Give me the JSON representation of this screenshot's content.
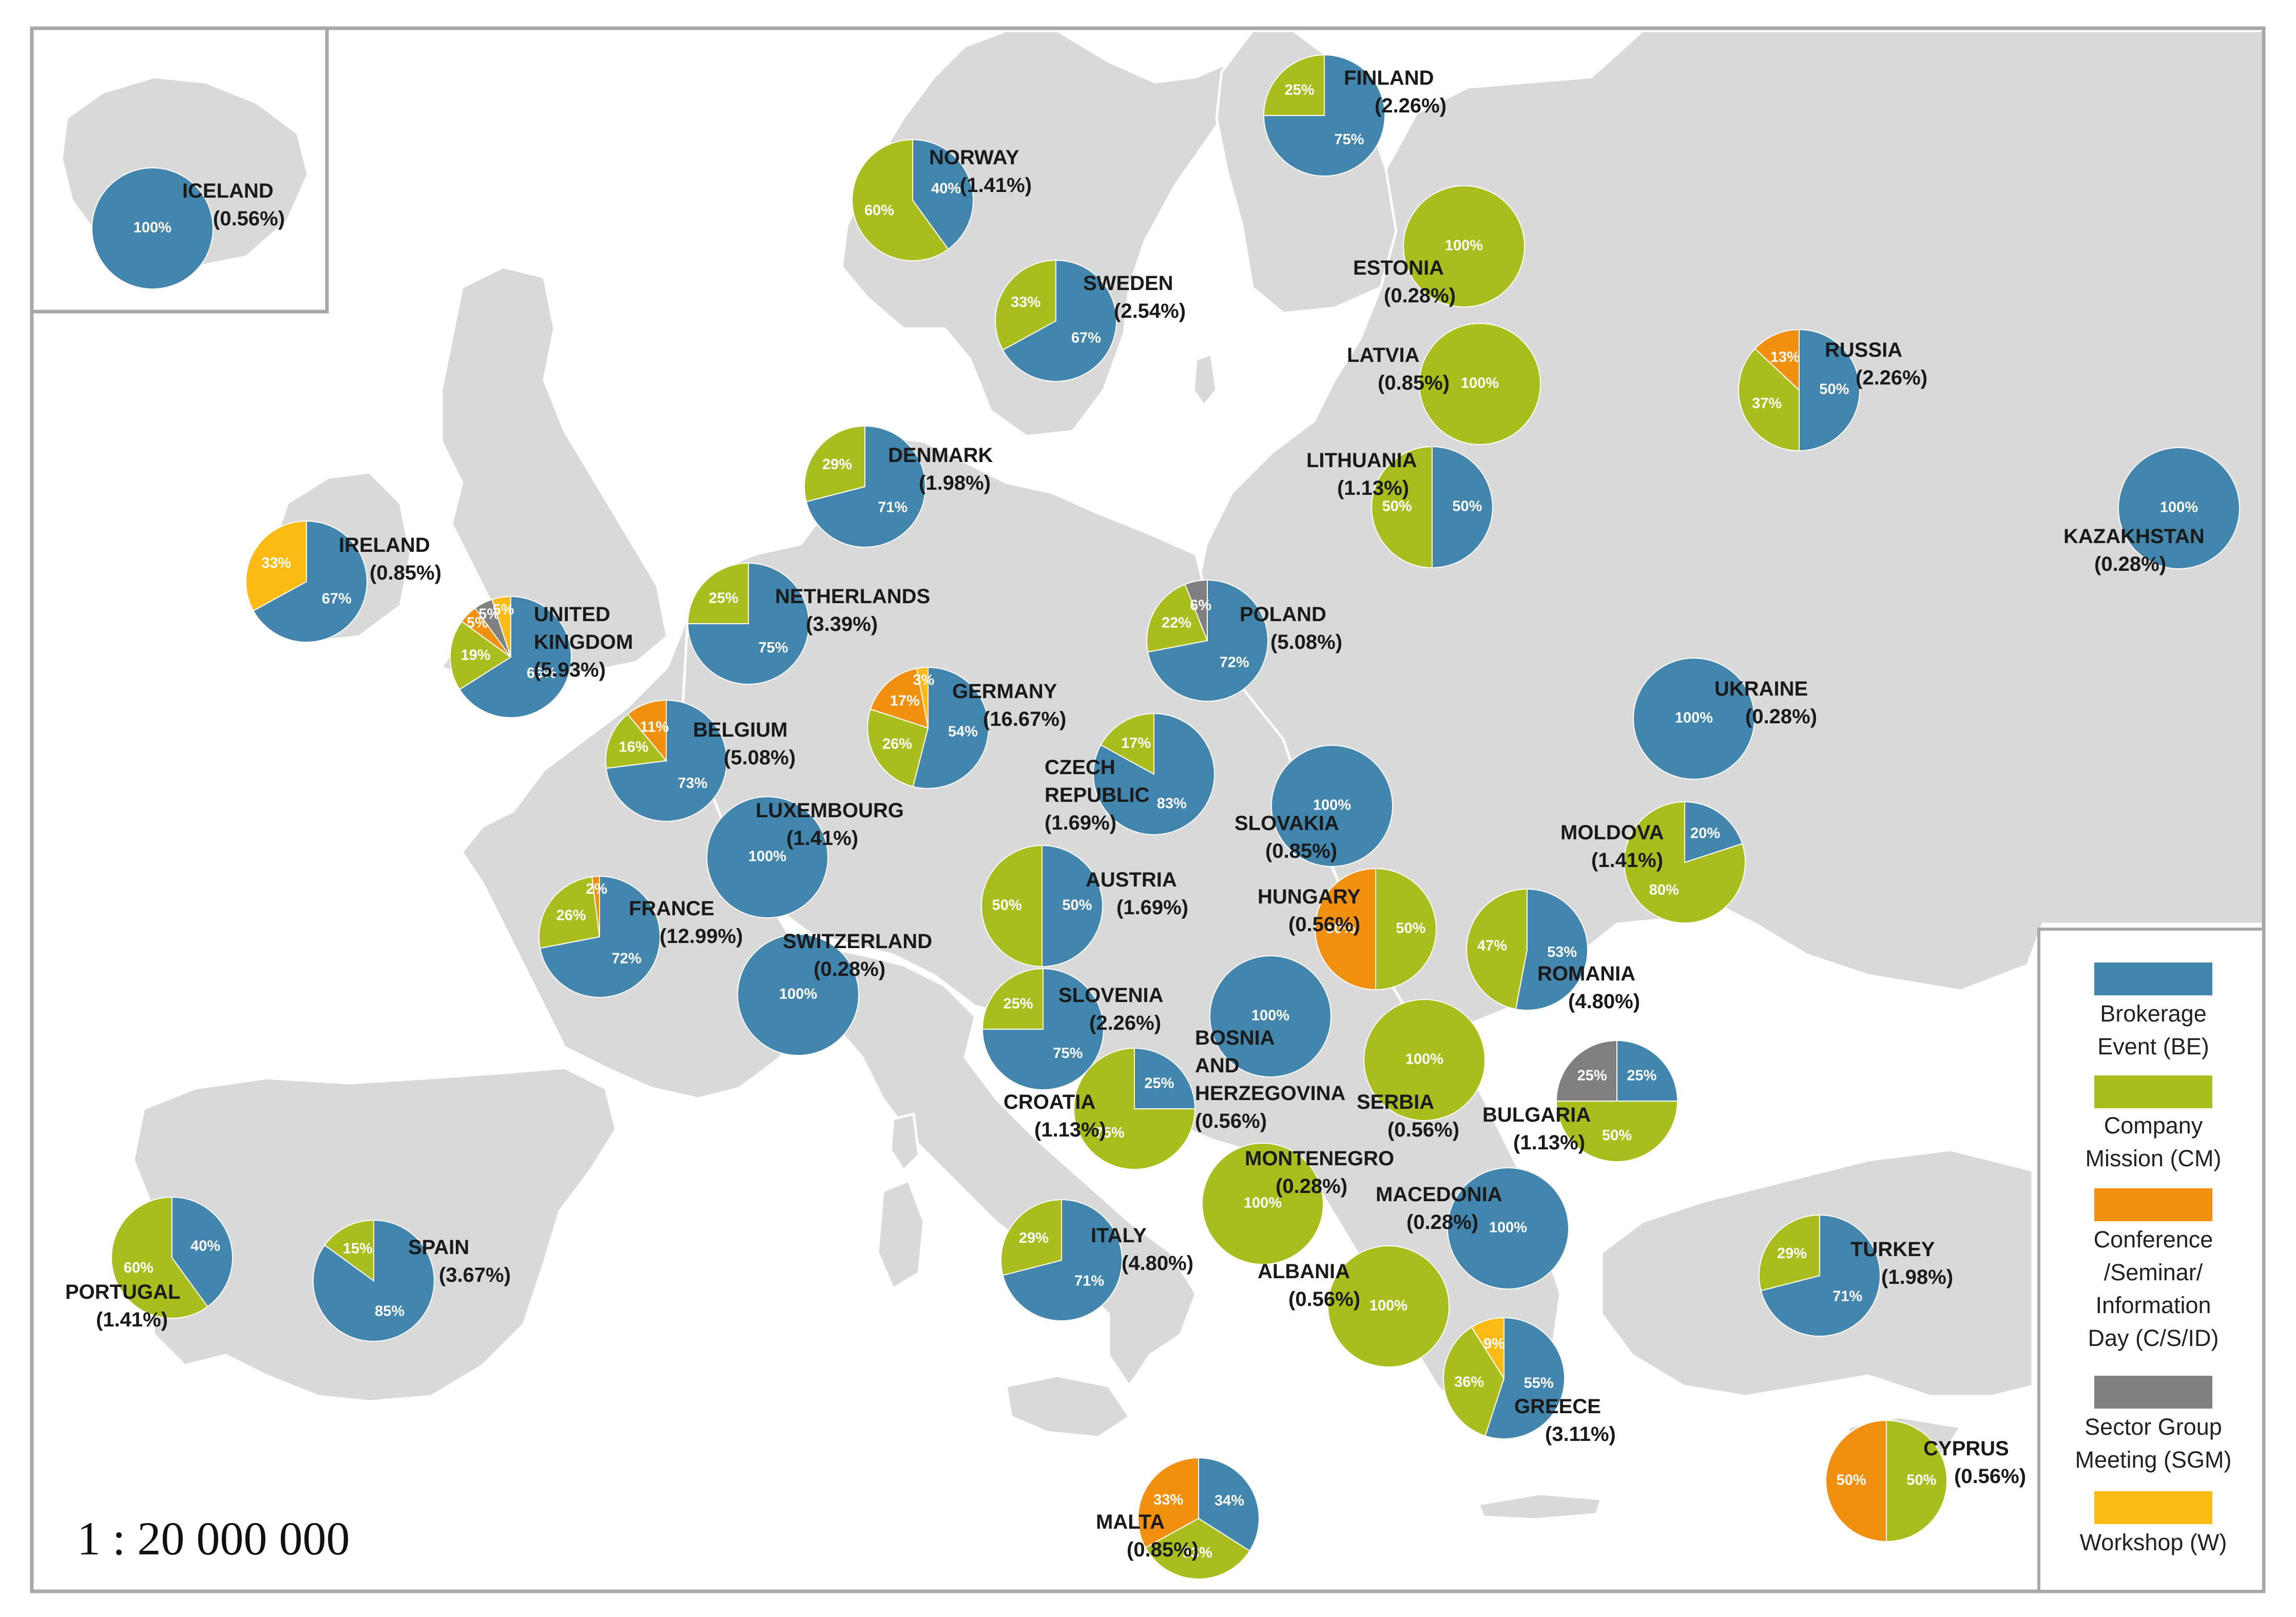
{
  "scale": "1 : 20 000 000",
  "colors": {
    "BE": "#4286ad",
    "CM": "#a9be1c",
    "CSID": "#f1900e",
    "SGM": "#808080",
    "W": "#fbbb12"
  },
  "legend": [
    {
      "key": "BE",
      "lines": [
        "Brokerage",
        "Event (BE)"
      ]
    },
    {
      "key": "CM",
      "lines": [
        "Company",
        "Mission (CM)"
      ]
    },
    {
      "key": "CSID",
      "lines": [
        "Conference",
        "/Seminar/",
        "Information",
        "Day (C/S/ID)"
      ]
    },
    {
      "key": "SGM",
      "lines": [
        "Sector Group",
        "Meeting (SGM)"
      ]
    },
    {
      "key": "W",
      "lines": [
        "Workshop (W)"
      ]
    }
  ],
  "countries": [
    {
      "id": "iceland",
      "name": [
        "ICELAND"
      ],
      "share": "(0.56%)",
      "slices": [
        {
          "k": "BE",
          "v": 100,
          "label": "100%"
        }
      ]
    },
    {
      "id": "finland",
      "name": [
        "FINLAND"
      ],
      "share": "(2.26%)",
      "slices": [
        {
          "k": "BE",
          "v": 75,
          "label": "75%"
        },
        {
          "k": "CM",
          "v": 25,
          "label": "25%"
        }
      ]
    },
    {
      "id": "norway",
      "name": [
        "NORWAY"
      ],
      "share": "(1.41%)",
      "slices": [
        {
          "k": "BE",
          "v": 40,
          "label": "40%"
        },
        {
          "k": "CM",
          "v": 60,
          "label": "60%"
        }
      ]
    },
    {
      "id": "sweden",
      "name": [
        "SWEDEN"
      ],
      "share": "(2.54%)",
      "slices": [
        {
          "k": "BE",
          "v": 67,
          "label": "67%"
        },
        {
          "k": "CM",
          "v": 33,
          "label": "33%"
        }
      ]
    },
    {
      "id": "estonia",
      "name": [
        "ESTONIA"
      ],
      "share": "(0.28%)",
      "slices": [
        {
          "k": "CM",
          "v": 100,
          "label": "100%"
        }
      ]
    },
    {
      "id": "latvia",
      "name": [
        "LATVIA"
      ],
      "share": "(0.85%)",
      "slices": [
        {
          "k": "CM",
          "v": 100,
          "label": "100%"
        }
      ]
    },
    {
      "id": "russia",
      "name": [
        "RUSSIA"
      ],
      "share": "(2.26%)",
      "slices": [
        {
          "k": "BE",
          "v": 50,
          "label": "50%"
        },
        {
          "k": "CM",
          "v": 37,
          "label": "37%"
        },
        {
          "k": "CSID",
          "v": 13,
          "label": "13%"
        }
      ]
    },
    {
      "id": "denmark",
      "name": [
        "DENMARK"
      ],
      "share": "(1.98%)",
      "slices": [
        {
          "k": "BE",
          "v": 71,
          "label": "71%"
        },
        {
          "k": "CM",
          "v": 29,
          "label": "29%"
        }
      ]
    },
    {
      "id": "lithuania",
      "name": [
        "LITHUANIA"
      ],
      "share": "(1.13%)",
      "slices": [
        {
          "k": "BE",
          "v": 50,
          "label": "50%"
        },
        {
          "k": "CM",
          "v": 50,
          "label": "50%"
        }
      ]
    },
    {
      "id": "kazakhstan",
      "name": [
        "KAZAKHSTAN"
      ],
      "share": "(0.28%)",
      "slices": [
        {
          "k": "BE",
          "v": 100,
          "label": "100%"
        }
      ]
    },
    {
      "id": "ireland",
      "name": [
        "IRELAND"
      ],
      "share": "(0.85%)",
      "slices": [
        {
          "k": "BE",
          "v": 67,
          "label": "67%"
        },
        {
          "k": "W",
          "v": 33,
          "label": "33%"
        }
      ]
    },
    {
      "id": "uk",
      "name": [
        "UNITED",
        "KINGDOM"
      ],
      "share": "(5.93%)",
      "slices": [
        {
          "k": "BE",
          "v": 66,
          "label": "66%"
        },
        {
          "k": "CM",
          "v": 19,
          "label": "19%"
        },
        {
          "k": "CSID",
          "v": 5,
          "label": "5%"
        },
        {
          "k": "SGM",
          "v": 5,
          "label": "5%"
        },
        {
          "k": "W",
          "v": 5,
          "label": "5%"
        }
      ]
    },
    {
      "id": "netherlands",
      "name": [
        "NETHERLANDS"
      ],
      "share": "(3.39%)",
      "slices": [
        {
          "k": "BE",
          "v": 75,
          "label": "75%"
        },
        {
          "k": "CM",
          "v": 25,
          "label": "25%"
        }
      ]
    },
    {
      "id": "poland",
      "name": [
        "POLAND"
      ],
      "share": "(5.08%)",
      "slices": [
        {
          "k": "BE",
          "v": 72,
          "label": "72%"
        },
        {
          "k": "CM",
          "v": 22,
          "label": "22%"
        },
        {
          "k": "SGM",
          "v": 6,
          "label": "6%"
        }
      ]
    },
    {
      "id": "germany",
      "name": [
        "GERMANY"
      ],
      "share": "(16.67%)",
      "slices": [
        {
          "k": "BE",
          "v": 54,
          "label": "54%"
        },
        {
          "k": "CM",
          "v": 26,
          "label": "26%"
        },
        {
          "k": "CSID",
          "v": 17,
          "label": "17%"
        },
        {
          "k": "W",
          "v": 3,
          "label": "3%"
        }
      ]
    },
    {
      "id": "belgium",
      "name": [
        "BELGIUM"
      ],
      "share": "(5.08%)",
      "slices": [
        {
          "k": "BE",
          "v": 73,
          "label": "73%"
        },
        {
          "k": "CM",
          "v": 16,
          "label": "16%"
        },
        {
          "k": "CSID",
          "v": 11,
          "label": "11%"
        }
      ]
    },
    {
      "id": "ukraine",
      "name": [
        "UKRAINE"
      ],
      "share": "(0.28%)",
      "slices": [
        {
          "k": "BE",
          "v": 100,
          "label": "100%"
        }
      ]
    },
    {
      "id": "czech",
      "name": [
        "CZECH",
        "REPUBLIC"
      ],
      "share": "(1.69%)",
      "slices": [
        {
          "k": "BE",
          "v": 83,
          "label": "83%"
        },
        {
          "k": "CM",
          "v": 17,
          "label": "17%"
        }
      ]
    },
    {
      "id": "luxembourg",
      "name": [
        "LUXEMBOURG"
      ],
      "share": "(1.41%)",
      "slices": [
        {
          "k": "BE",
          "v": 100,
          "label": "100%"
        }
      ]
    },
    {
      "id": "slovakia",
      "name": [
        "SLOVAKIA"
      ],
      "share": "(0.85%)",
      "slices": [
        {
          "k": "BE",
          "v": 100,
          "label": "100%"
        }
      ]
    },
    {
      "id": "moldova",
      "name": [
        "MOLDOVA"
      ],
      "share": "(1.41%)",
      "slices": [
        {
          "k": "BE",
          "v": 20,
          "label": "20%"
        },
        {
          "k": "CM",
          "v": 80,
          "label": "80%"
        }
      ]
    },
    {
      "id": "austria",
      "name": [
        "AUSTRIA"
      ],
      "share": "(1.69%)",
      "slices": [
        {
          "k": "BE",
          "v": 50,
          "label": "50%"
        },
        {
          "k": "CM",
          "v": 50,
          "label": "50%"
        }
      ]
    },
    {
      "id": "hungary",
      "name": [
        "HUNGARY"
      ],
      "share": "(0.56%)",
      "slices": [
        {
          "k": "CM",
          "v": 50,
          "label": "50%"
        },
        {
          "k": "CSID",
          "v": 50,
          "label": "50%"
        }
      ]
    },
    {
      "id": "france",
      "name": [
        "FRANCE"
      ],
      "share": "(12.99%)",
      "slices": [
        {
          "k": "BE",
          "v": 72,
          "label": "72%"
        },
        {
          "k": "CM",
          "v": 26,
          "label": "26%"
        },
        {
          "k": "CSID",
          "v": 2,
          "label": "2%"
        }
      ]
    },
    {
      "id": "switzerland",
      "name": [
        "SWITZERLAND"
      ],
      "share": "(0.28%)",
      "slices": [
        {
          "k": "BE",
          "v": 100,
          "label": "100%"
        }
      ]
    },
    {
      "id": "romania",
      "name": [
        "ROMANIA"
      ],
      "share": "(4.80%)",
      "slices": [
        {
          "k": "BE",
          "v": 53,
          "label": "53%"
        },
        {
          "k": "CM",
          "v": 47,
          "label": "47%"
        }
      ]
    },
    {
      "id": "slovenia",
      "name": [
        "SLOVENIA"
      ],
      "share": "(2.26%)",
      "slices": [
        {
          "k": "BE",
          "v": 75,
          "label": "75%"
        },
        {
          "k": "CM",
          "v": 25,
          "label": "25%"
        }
      ]
    },
    {
      "id": "bosnia",
      "name": [
        "BOSNIA",
        "AND",
        "HERZEGOVINA"
      ],
      "share": "(0.56%)",
      "slices": [
        {
          "k": "BE",
          "v": 100,
          "label": "100%"
        }
      ]
    },
    {
      "id": "serbia",
      "name": [
        "SERBIA"
      ],
      "share": "(0.56%)",
      "slices": [
        {
          "k": "CM",
          "v": 100,
          "label": "100%"
        }
      ]
    },
    {
      "id": "bulgaria",
      "name": [
        "BULGARIA"
      ],
      "share": "(1.13%)",
      "slices": [
        {
          "k": "BE",
          "v": 25,
          "label": "25%"
        },
        {
          "k": "CM",
          "v": 50,
          "label": "50%"
        },
        {
          "k": "SGM",
          "v": 25,
          "label": "25%"
        }
      ]
    },
    {
      "id": "croatia",
      "name": [
        "CROATIA"
      ],
      "share": "(1.13%)",
      "slices": [
        {
          "k": "BE",
          "v": 25,
          "label": "25%"
        },
        {
          "k": "CM",
          "v": 75,
          "label": "75%"
        }
      ]
    },
    {
      "id": "montenegro",
      "name": [
        "MONTENEGRO"
      ],
      "share": "(0.28%)",
      "slices": [
        {
          "k": "CM",
          "v": 100,
          "label": "100%"
        }
      ]
    },
    {
      "id": "macedonia",
      "name": [
        "MACEDONIA"
      ],
      "share": "(0.28%)",
      "slices": [
        {
          "k": "BE",
          "v": 100,
          "label": "100%"
        }
      ]
    },
    {
      "id": "portugal",
      "name": [
        "PORTUGAL"
      ],
      "share": "(1.41%)",
      "slices": [
        {
          "k": "BE",
          "v": 40,
          "label": "40%"
        },
        {
          "k": "CM",
          "v": 60,
          "label": "60%"
        }
      ]
    },
    {
      "id": "spain",
      "name": [
        "SPAIN"
      ],
      "share": "(3.67%)",
      "slices": [
        {
          "k": "BE",
          "v": 85,
          "label": "85%"
        },
        {
          "k": "CM",
          "v": 15,
          "label": "15%"
        }
      ]
    },
    {
      "id": "italy",
      "name": [
        "ITALY"
      ],
      "share": "(4.80%)",
      "slices": [
        {
          "k": "BE",
          "v": 71,
          "label": "71%"
        },
        {
          "k": "CM",
          "v": 29,
          "label": "29%"
        }
      ]
    },
    {
      "id": "albania",
      "name": [
        "ALBANIA"
      ],
      "share": "(0.56%)",
      "slices": [
        {
          "k": "CM",
          "v": 100,
          "label": "100%"
        }
      ]
    },
    {
      "id": "turkey",
      "name": [
        "TURKEY"
      ],
      "share": "(1.98%)",
      "slices": [
        {
          "k": "BE",
          "v": 71,
          "label": "71%"
        },
        {
          "k": "CM",
          "v": 29,
          "label": "29%"
        }
      ]
    },
    {
      "id": "greece",
      "name": [
        "GREECE"
      ],
      "share": "(3.11%)",
      "slices": [
        {
          "k": "BE",
          "v": 55,
          "label": "55%"
        },
        {
          "k": "CM",
          "v": 36,
          "label": "36%"
        },
        {
          "k": "W",
          "v": 9,
          "label": "9%"
        }
      ]
    },
    {
      "id": "cyprus",
      "name": [
        "CYPRUS"
      ],
      "share": "(0.56%)",
      "slices": [
        {
          "k": "CM",
          "v": 50,
          "label": "50%"
        },
        {
          "k": "CSID",
          "v": 50,
          "label": "50%"
        }
      ]
    },
    {
      "id": "malta",
      "name": [
        "MALTA"
      ],
      "share": "(0.85%)",
      "slices": [
        {
          "k": "BE",
          "v": 34,
          "label": "34%"
        },
        {
          "k": "CM",
          "v": 33,
          "label": "33%"
        },
        {
          "k": "CSID",
          "v": 33,
          "label": "33%"
        }
      ]
    }
  ]
}
